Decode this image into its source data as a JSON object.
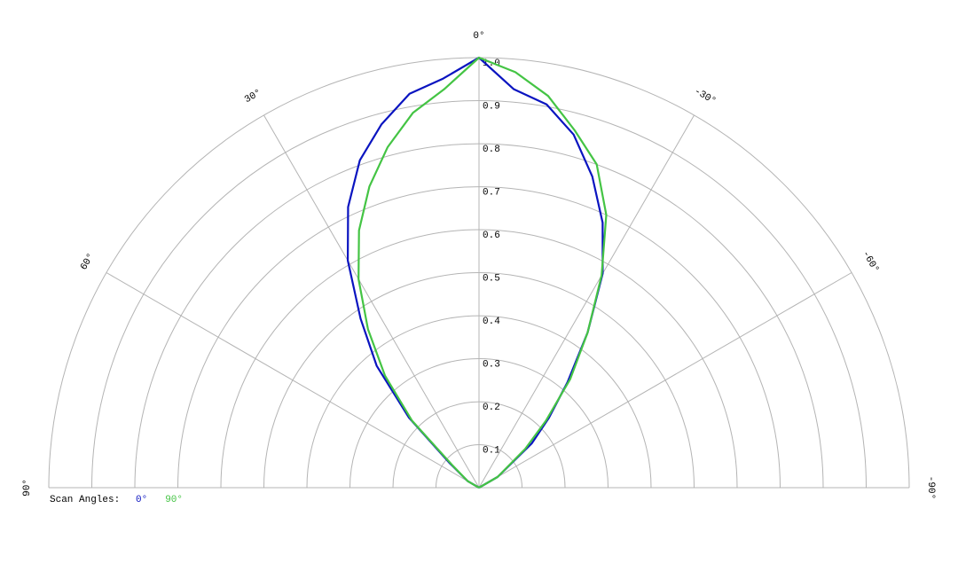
{
  "chart_data": {
    "type": "polar",
    "legend_title": "Scan Angles:",
    "x": [
      -90,
      -60,
      -50,
      -45,
      -40,
      -35,
      -30,
      -25,
      -20,
      -15,
      -10,
      -5,
      0,
      5,
      10,
      15,
      20,
      25,
      30,
      35,
      40,
      45,
      50,
      60,
      90
    ],
    "series": [
      {
        "name": "0°",
        "color": "#0a14c0",
        "values": [
          0,
          0.05,
          0.16,
          0.23,
          0.32,
          0.44,
          0.575,
          0.68,
          0.77,
          0.85,
          0.905,
          0.93,
          1.0,
          0.955,
          0.93,
          0.875,
          0.81,
          0.72,
          0.61,
          0.48,
          0.37,
          0.23,
          0.09,
          0.03,
          0
        ]
      },
      {
        "name": "90°",
        "color": "#44c444",
        "values": [
          0,
          0.05,
          0.14,
          0.22,
          0.33,
          0.44,
          0.57,
          0.7,
          0.8,
          0.86,
          0.925,
          0.97,
          1.0,
          0.93,
          0.885,
          0.82,
          0.745,
          0.66,
          0.56,
          0.45,
          0.34,
          0.22,
          0.08,
          0.03,
          0
        ]
      }
    ],
    "xlim": [
      -90,
      90
    ],
    "xticks": [
      {
        "value": -90,
        "label": "-90°"
      },
      {
        "value": -60,
        "label": "-60°"
      },
      {
        "value": -30,
        "label": "-30°"
      },
      {
        "value": 0,
        "label": "0°"
      },
      {
        "value": 30,
        "label": "30°"
      },
      {
        "value": 60,
        "label": "60°"
      },
      {
        "value": 90,
        "label": "90°"
      }
    ],
    "ylim": [
      0,
      1
    ],
    "yticks": [
      0.1,
      0.2,
      0.3,
      0.4,
      0.5,
      0.6,
      0.7,
      0.8,
      0.9,
      {
        "value": 1,
        "label": "1.0"
      }
    ],
    "grid": true
  }
}
